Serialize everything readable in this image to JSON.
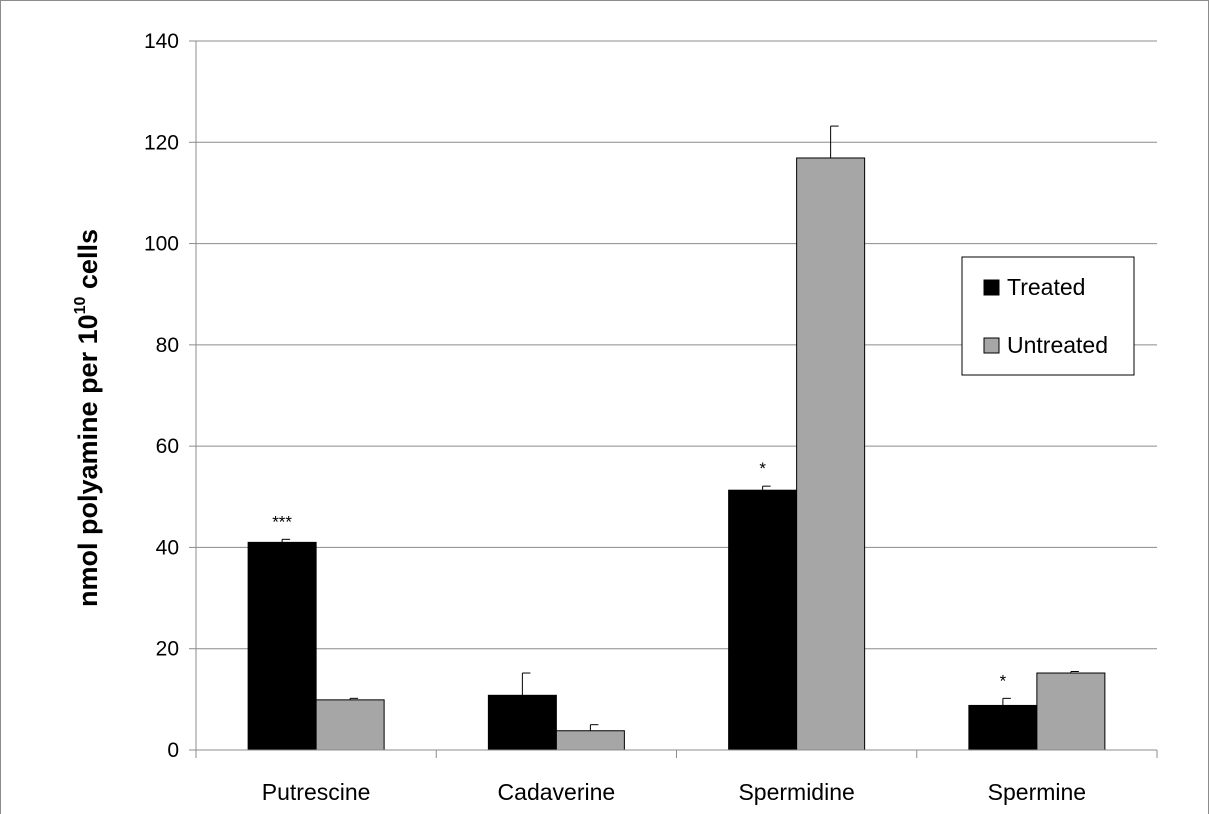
{
  "chart_data": {
    "type": "bar",
    "categories": [
      "Putrescine",
      "Cadaverine",
      "Spermidine",
      "Spermine"
    ],
    "series": [
      {
        "name": "Treated",
        "color": "#000000",
        "values": [
          41,
          10.8,
          51.3,
          8.8
        ],
        "errors": [
          0.6,
          4.4,
          0.8,
          1.4
        ],
        "annotations": [
          "***",
          "",
          "*",
          "*"
        ]
      },
      {
        "name": "Untreated",
        "color": "#a6a6a6",
        "values": [
          9.9,
          3.8,
          116.9,
          15.2
        ],
        "errors": [
          0.3,
          1.2,
          6.3,
          0.3
        ],
        "annotations": [
          "",
          "",
          "",
          ""
        ]
      }
    ],
    "ylabel_main": "nmol polyamine per 10",
    "ylabel_sup": "10",
    "ylabel_end": " cells",
    "ylim": [
      0,
      140
    ],
    "yticks": [
      0,
      20,
      40,
      60,
      80,
      100,
      120,
      140
    ],
    "grid": true,
    "legend": "right"
  }
}
